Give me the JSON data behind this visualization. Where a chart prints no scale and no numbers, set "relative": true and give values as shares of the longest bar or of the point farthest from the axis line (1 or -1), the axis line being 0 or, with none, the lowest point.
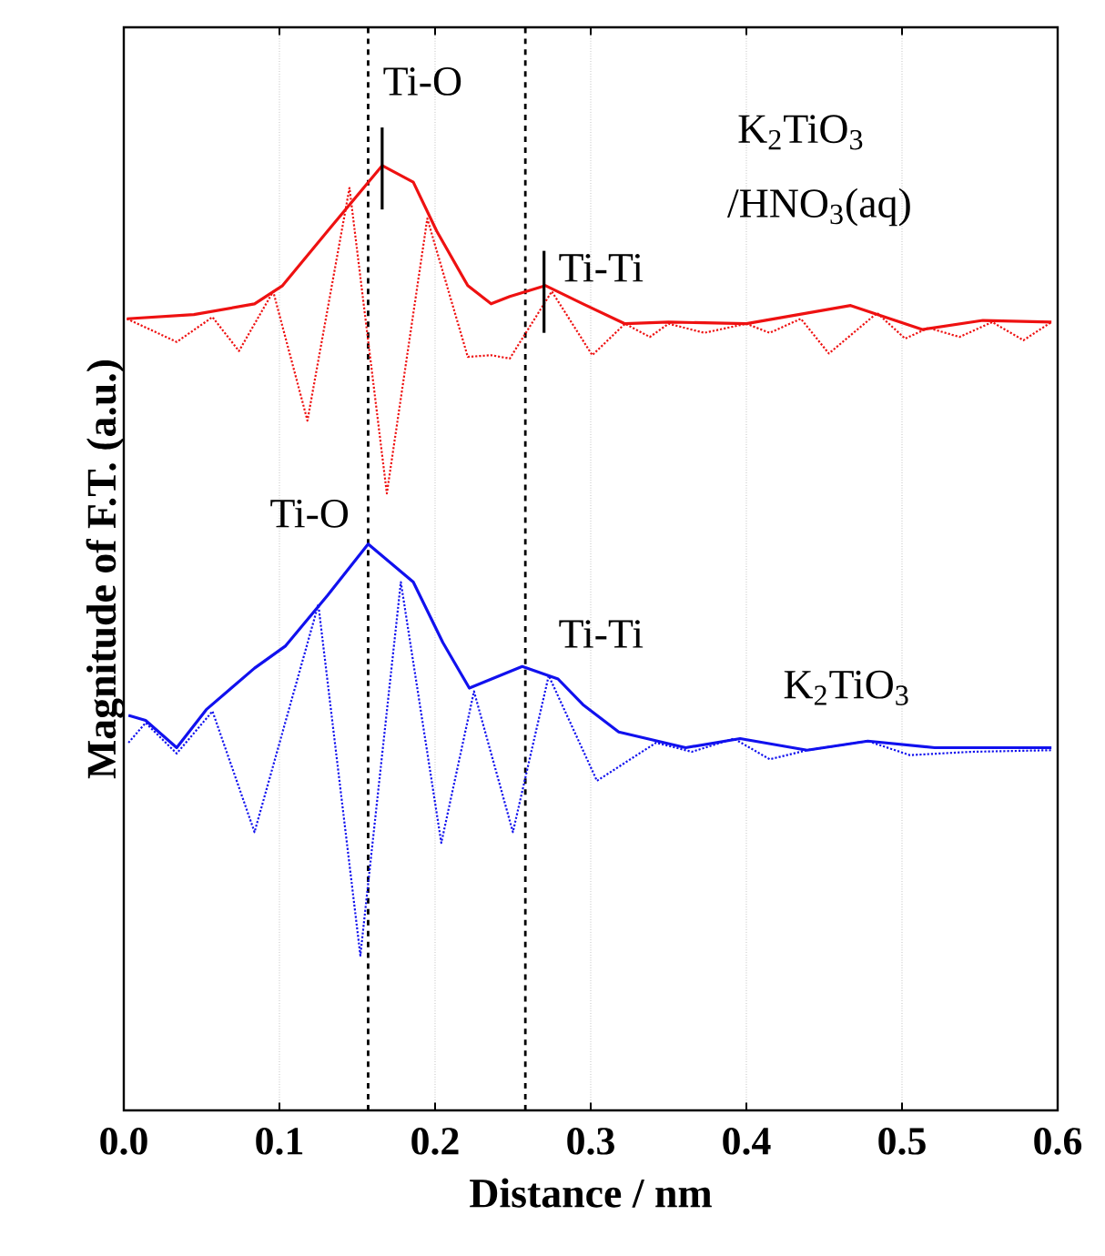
{
  "chart_data": {
    "type": "line",
    "relative": true,
    "xlabel": "Distance / nm",
    "ylabel": "Magnitude of F.T. (a.u.)",
    "xlim": [
      0,
      0.6
    ],
    "xticks": [
      {
        "value": 0,
        "label": "0.0"
      },
      {
        "value": 0.1,
        "label": "0.1"
      },
      {
        "value": 0.2,
        "label": "0.2"
      },
      {
        "value": 0.3,
        "label": "0.3"
      },
      {
        "value": 0.4,
        "label": "0.4"
      },
      {
        "value": 0.5,
        "label": "0.5"
      },
      {
        "value": 0.6,
        "label": "0.6"
      }
    ],
    "grid": "x",
    "series": [
      {
        "color": "#ee1111",
        "line_style": "solid",
        "x": [
          0.002,
          0.045,
          0.084,
          0.102,
          0.131,
          0.166,
          0.186,
          0.201,
          0.221,
          0.236,
          0.248,
          0.271,
          0.295,
          0.322,
          0.35,
          0.4,
          0.467,
          0.513,
          0.552,
          0.596
        ],
        "values": [
          0.769,
          0.774,
          0.787,
          0.809,
          0.875,
          0.954,
          0.934,
          0.875,
          0.809,
          0.787,
          0.796,
          0.809,
          0.787,
          0.763,
          0.765,
          0.763,
          0.785,
          0.756,
          0.767,
          0.765
        ]
      },
      {
        "color": "#ee1111",
        "line_style": "dotted",
        "x": [
          0.002,
          0.034,
          0.057,
          0.074,
          0.096,
          0.118,
          0.145,
          0.169,
          0.195,
          0.221,
          0.236,
          0.248,
          0.275,
          0.301,
          0.322,
          0.338,
          0.35,
          0.373,
          0.4,
          0.415,
          0.435,
          0.453,
          0.484,
          0.502,
          0.517,
          0.537,
          0.558,
          0.578,
          0.596
        ],
        "values": [
          0.769,
          0.741,
          0.771,
          0.73,
          0.802,
          0.646,
          0.927,
          0.558,
          0.89,
          0.723,
          0.725,
          0.721,
          0.802,
          0.725,
          0.763,
          0.747,
          0.763,
          0.752,
          0.763,
          0.752,
          0.769,
          0.727,
          0.776,
          0.745,
          0.758,
          0.747,
          0.765,
          0.743,
          0.765
        ]
      },
      {
        "color": "#1111ee",
        "line_style": "solid",
        "x": [
          0.003,
          0.014,
          0.034,
          0.053,
          0.084,
          0.104,
          0.131,
          0.157,
          0.186,
          0.205,
          0.222,
          0.256,
          0.279,
          0.295,
          0.318,
          0.361,
          0.396,
          0.439,
          0.478,
          0.521,
          0.596
        ],
        "values": [
          0.29,
          0.284,
          0.251,
          0.297,
          0.347,
          0.374,
          0.435,
          0.497,
          0.451,
          0.378,
          0.323,
          0.349,
          0.334,
          0.303,
          0.27,
          0.251,
          0.262,
          0.248,
          0.259,
          0.251,
          0.251
        ]
      },
      {
        "color": "#1111ee",
        "line_style": "dotted",
        "x": [
          0.003,
          0.014,
          0.034,
          0.057,
          0.084,
          0.125,
          0.152,
          0.178,
          0.204,
          0.225,
          0.25,
          0.273,
          0.304,
          0.342,
          0.365,
          0.392,
          0.415,
          0.439,
          0.478,
          0.505,
          0.544,
          0.596
        ],
        "values": [
          0.257,
          0.281,
          0.244,
          0.295,
          0.149,
          0.424,
          0,
          0.451,
          0.136,
          0.319,
          0.149,
          0.338,
          0.211,
          0.257,
          0.246,
          0.262,
          0.237,
          0.248,
          0.259,
          0.242,
          0.246,
          0.248
        ]
      },
      {
        "color": "#000000",
        "line_style": "solid",
        "x": [
          0.166,
          0.166
        ],
        "values": [
          0.901,
          1.0
        ]
      },
      {
        "color": "#000000",
        "line_style": "solid",
        "x": [
          0.27,
          0.27
        ],
        "values": [
          0.752,
          0.851
        ]
      }
    ],
    "ref_lines": [
      {
        "axis": "x",
        "value": 0.157,
        "color": "#000000",
        "line_style": "dashed"
      },
      {
        "axis": "x",
        "value": 0.258,
        "color": "#000000",
        "line_style": "dashed"
      }
    ],
    "annotations": [
      "Ti-O",
      "Ti-Ti",
      "K$_{2}$TiO$_{3}$",
      "/HNO$_{3}$(aq)",
      "Ti-O",
      "Ti-Ti",
      "K$_{2}$TiO$_{3}$"
    ]
  }
}
